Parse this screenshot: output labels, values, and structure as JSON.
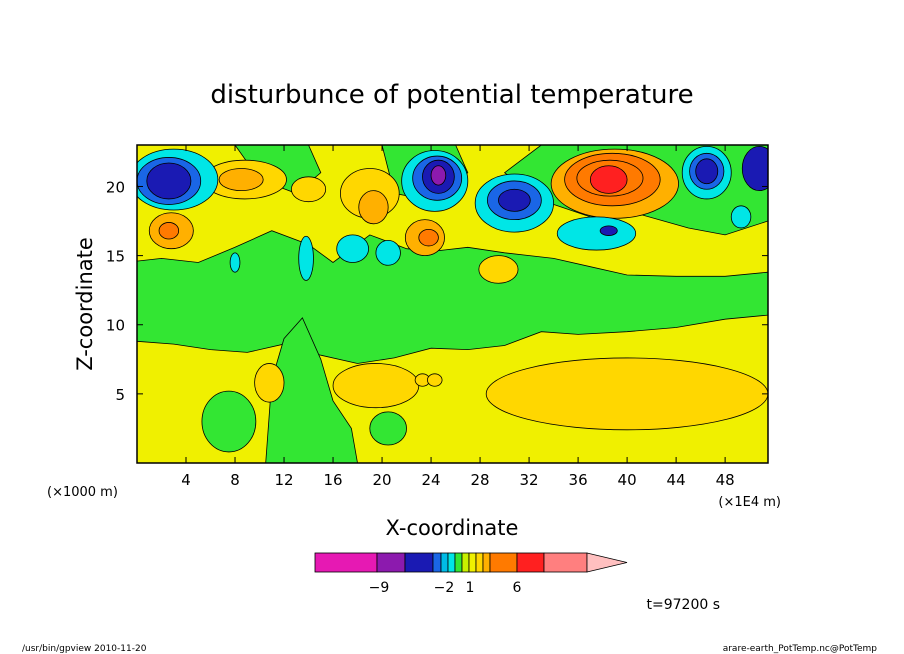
{
  "chart_data": {
    "type": "heatmap",
    "title": "disturbunce of potential temperature",
    "xlabel": "X-coordinate",
    "ylabel": "Z-coordinate",
    "x_unit_left": "(×1000 m)",
    "x_unit_right": "(×1E4 m)",
    "xlim": [
      0,
      51.5
    ],
    "ylim": [
      0,
      23
    ],
    "x_ticks": [
      "4",
      "8",
      "12",
      "16",
      "20",
      "24",
      "28",
      "32",
      "36",
      "40",
      "44",
      "48"
    ],
    "y_ticks": [
      "5",
      "10",
      "15",
      "20"
    ],
    "colorbar": {
      "tick_labels": [
        "−9",
        "−2",
        "1",
        "6"
      ],
      "colors": [
        "#e619b3",
        "#8c1aae",
        "#1a1ab3",
        "#1a66e6",
        "#00bbe6",
        "#00e6e6",
        "#33e633",
        "#c8f000",
        "#f0f000",
        "#ffd700",
        "#ffb000",
        "#ff7a00",
        "#ff2020",
        "#ff7f7f",
        "#ffc0c0"
      ]
    },
    "field_colors": {
      "background": "#f0f000",
      "warm_light": "#ffd700",
      "warm": "#ffb000",
      "hot": "#ff7a00",
      "peak": "#ff2020",
      "cool": "#33e633",
      "cold_light": "#00e6e6",
      "cold": "#1a66e6",
      "colder": "#1a1ab3",
      "coldest": "#8c1aae"
    },
    "features": [
      {
        "name": "upper-cold-left",
        "x": 3,
        "y": 20.5,
        "sign": "negative"
      },
      {
        "name": "upper-cold-24",
        "x": 24.5,
        "y": 20.5,
        "sign": "negative"
      },
      {
        "name": "upper-cold-31",
        "x": 30.5,
        "y": 19,
        "sign": "negative"
      },
      {
        "name": "upper-warm-38",
        "x": 38.5,
        "y": 20.5,
        "sign": "positive"
      },
      {
        "name": "lower-warm-band",
        "x": 40,
        "y": 5,
        "sign": "positive"
      }
    ]
  },
  "annotations": {
    "time_label": "t=97200 s",
    "footer_left": "/usr/bin/gpview   2010-11-20",
    "footer_right": "arare-earth_PotTemp.nc@PotTemp"
  }
}
